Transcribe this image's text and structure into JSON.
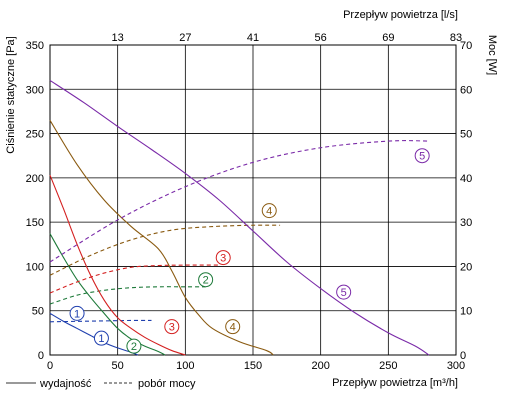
{
  "chart_data": {
    "type": "line",
    "x_bottom": {
      "label": "Przepływ powietrza [m³/h]",
      "ticks": [
        "0",
        "50",
        "100",
        "150",
        "200",
        "250",
        "300"
      ],
      "range": [
        0,
        300
      ]
    },
    "x_top": {
      "label": "Przepływ powietrza [l/s]",
      "ticks": [
        "13",
        "27",
        "41",
        "56",
        "69",
        "83"
      ],
      "tick_positions_m3h": [
        50,
        100,
        150,
        200,
        250,
        300
      ]
    },
    "y_left": {
      "label": "Ciśnienie statyczne [Pa]",
      "ticks": [
        "0",
        "50",
        "100",
        "150",
        "200",
        "250",
        "300",
        "350"
      ],
      "range": [
        0,
        350
      ]
    },
    "y_right": {
      "label": "Moc [W]",
      "ticks": [
        "0",
        "10",
        "20",
        "30",
        "40",
        "50",
        "60",
        "70"
      ],
      "range": [
        0,
        70
      ]
    },
    "grid": true,
    "legend": {
      "position": "bottom-left",
      "entries": [
        {
          "style": "solid",
          "label": "wydajność"
        },
        {
          "style": "dashed",
          "label": "pobór mocy"
        }
      ]
    },
    "series": [
      {
        "id": "1",
        "color": "#1f3fae",
        "pressure": [
          [
            0,
            47
          ],
          [
            10,
            38
          ],
          [
            20,
            30
          ],
          [
            30,
            22
          ],
          [
            40,
            14
          ],
          [
            50,
            8
          ],
          [
            60,
            3
          ],
          [
            65,
            0
          ]
        ],
        "power": [
          [
            0,
            7.5
          ],
          [
            20,
            7.6
          ],
          [
            40,
            7.7
          ],
          [
            60,
            7.8
          ],
          [
            75,
            7.8
          ]
        ]
      },
      {
        "id": "2",
        "color": "#1e7a3a",
        "pressure": [
          [
            0,
            137
          ],
          [
            10,
            110
          ],
          [
            20,
            85
          ],
          [
            30,
            65
          ],
          [
            40,
            47
          ],
          [
            50,
            30
          ],
          [
            60,
            18
          ],
          [
            70,
            10
          ],
          [
            80,
            4
          ],
          [
            85,
            0
          ]
        ],
        "power": [
          [
            0,
            11.5
          ],
          [
            20,
            13.5
          ],
          [
            40,
            14.6
          ],
          [
            60,
            15.2
          ],
          [
            80,
            15.4
          ],
          [
            100,
            15.4
          ],
          [
            115,
            15.4
          ]
        ]
      },
      {
        "id": "3",
        "color": "#d42020",
        "pressure": [
          [
            0,
            203
          ],
          [
            10,
            165
          ],
          [
            20,
            125
          ],
          [
            30,
            90
          ],
          [
            40,
            62
          ],
          [
            50,
            42
          ],
          [
            60,
            30
          ],
          [
            70,
            20
          ],
          [
            80,
            12
          ],
          [
            90,
            5
          ],
          [
            100,
            0
          ]
        ],
        "power": [
          [
            0,
            14
          ],
          [
            20,
            16.5
          ],
          [
            40,
            18.5
          ],
          [
            60,
            19.8
          ],
          [
            80,
            20.2
          ],
          [
            100,
            20.3
          ],
          [
            125,
            20.3
          ]
        ]
      },
      {
        "id": "4",
        "color": "#8a5a10",
        "pressure": [
          [
            0,
            265
          ],
          [
            20,
            215
          ],
          [
            40,
            175
          ],
          [
            60,
            145
          ],
          [
            80,
            120
          ],
          [
            90,
            95
          ],
          [
            100,
            65
          ],
          [
            110,
            45
          ],
          [
            120,
            30
          ],
          [
            140,
            15
          ],
          [
            160,
            5
          ],
          [
            165,
            0
          ]
        ],
        "power": [
          [
            0,
            18
          ],
          [
            30,
            22.5
          ],
          [
            60,
            26
          ],
          [
            90,
            28.2
          ],
          [
            120,
            29
          ],
          [
            150,
            29.3
          ],
          [
            170,
            29.3
          ]
        ]
      },
      {
        "id": "5",
        "color": "#7a2aa8",
        "pressure": [
          [
            0,
            310
          ],
          [
            25,
            285
          ],
          [
            50,
            258
          ],
          [
            75,
            232
          ],
          [
            100,
            205
          ],
          [
            125,
            175
          ],
          [
            150,
            140
          ],
          [
            175,
            105
          ],
          [
            200,
            75
          ],
          [
            225,
            48
          ],
          [
            250,
            25
          ],
          [
            270,
            10
          ],
          [
            280,
            0
          ]
        ],
        "power": [
          [
            0,
            21
          ],
          [
            50,
            30.5
          ],
          [
            100,
            38
          ],
          [
            150,
            43.5
          ],
          [
            200,
            46.8
          ],
          [
            250,
            48.3
          ],
          [
            280,
            48.3
          ]
        ]
      }
    ],
    "markers": [
      {
        "id": "1",
        "color": "#1f3fae",
        "at": [
          20,
          47
        ]
      },
      {
        "id": "1",
        "color": "#1f3fae",
        "at": [
          38,
          19
        ]
      },
      {
        "id": "2",
        "color": "#1e7a3a",
        "at": [
          62,
          10
        ]
      },
      {
        "id": "2",
        "color": "#1e7a3a",
        "at": [
          115,
          85
        ]
      },
      {
        "id": "3",
        "color": "#d42020",
        "at": [
          90,
          32
        ]
      },
      {
        "id": "3",
        "color": "#d42020",
        "at": [
          128,
          110
        ]
      },
      {
        "id": "4",
        "color": "#8a5a10",
        "at": [
          135,
          32
        ]
      },
      {
        "id": "4",
        "color": "#8a5a10",
        "at": [
          162,
          163
        ]
      },
      {
        "id": "5",
        "color": "#7a2aa8",
        "at": [
          217,
          71
        ]
      },
      {
        "id": "5",
        "color": "#7a2aa8",
        "at": [
          275,
          225
        ]
      }
    ]
  }
}
